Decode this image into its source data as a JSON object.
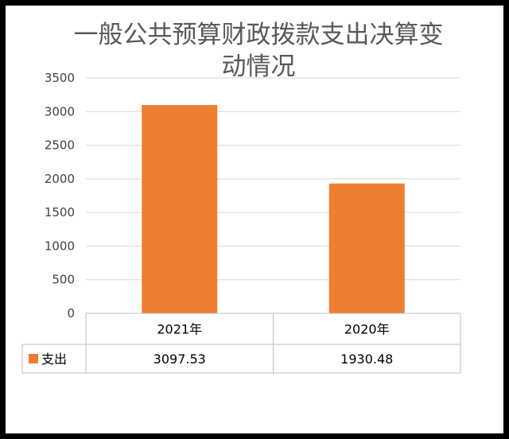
{
  "chart_data": {
    "type": "bar",
    "title": "一般公共预算财政拨款支出决算变动情况",
    "categories": [
      "2021年",
      "2020年"
    ],
    "series": [
      {
        "name": "支出",
        "values": [
          3097.53,
          1930.48
        ],
        "value_labels": [
          "3097.53",
          "1930.48"
        ],
        "color": "#ED7D31"
      }
    ],
    "yticks": [
      "0",
      "500",
      "1000",
      "1500",
      "2000",
      "2500",
      "3000",
      "3500"
    ],
    "ylim": [
      0,
      3500
    ],
    "grid": true,
    "legend": "data-table"
  }
}
